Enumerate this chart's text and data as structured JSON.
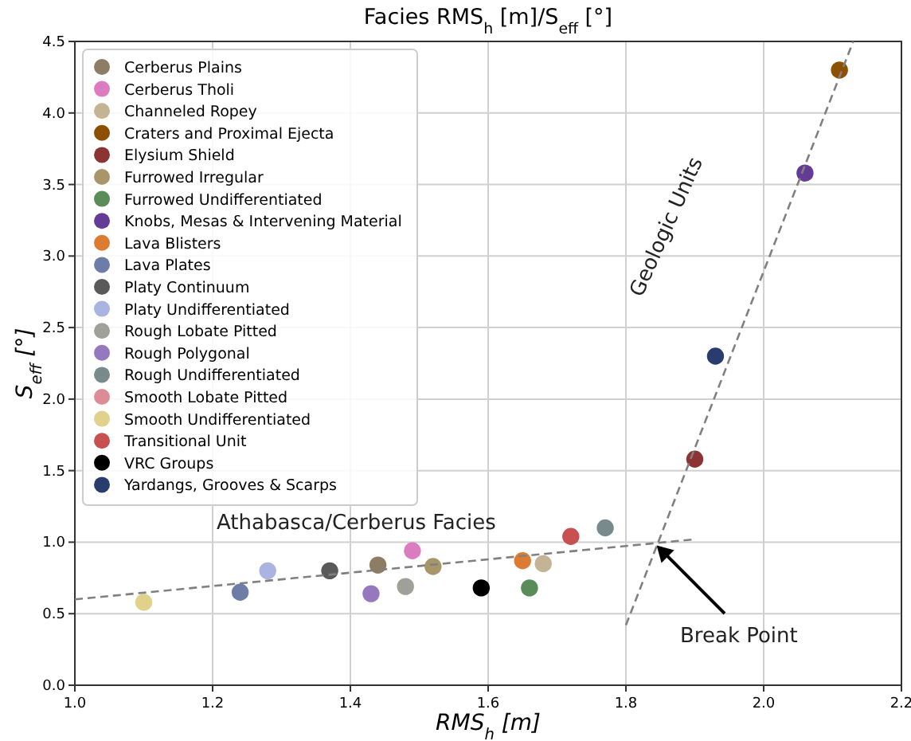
{
  "chart_data": {
    "type": "scatter",
    "title": "Facies RMS$_{h}$ [m]/S$_{eff}$ [°]",
    "xlabel": "RMS$_{h}$ [m]",
    "ylabel": "S$_{eff}$ [°]",
    "xlim": [
      1.0,
      2.2
    ],
    "ylim": [
      0,
      4.5
    ],
    "xticks": [
      {
        "value": 1.0,
        "label": "1.0"
      },
      {
        "value": 1.2,
        "label": "1.2"
      },
      {
        "value": 1.4,
        "label": "1.4"
      },
      {
        "value": 1.6,
        "label": "1.6"
      },
      {
        "value": 1.8,
        "label": "1.8"
      },
      {
        "value": 2.0,
        "label": "2.0"
      },
      {
        "value": 2.2,
        "label": "2.2"
      }
    ],
    "yticks": [
      {
        "value": 0,
        "label": "0.0"
      },
      {
        "value": 0.5,
        "label": "0.5"
      },
      {
        "value": 1.0,
        "label": "1.0"
      },
      {
        "value": 1.5,
        "label": "1.5"
      },
      {
        "value": 2.0,
        "label": "2.0"
      },
      {
        "value": 2.5,
        "label": "2.5"
      },
      {
        "value": 3.0,
        "label": "3.0"
      },
      {
        "value": 3.5,
        "label": "3.5"
      },
      {
        "value": 4.0,
        "label": "4.0"
      },
      {
        "value": 4.5,
        "label": "4.5"
      }
    ],
    "grid": true,
    "legend": "top left",
    "marker": "circle",
    "line_style": "dashed",
    "series": [
      {
        "name": "Cerberus Plains",
        "color": "#8c7d64",
        "x": [
          1.44
        ],
        "values": [
          0.84
        ]
      },
      {
        "name": "Cerberus Tholi",
        "color": "#dc7cc0",
        "x": [
          1.49
        ],
        "values": [
          0.94
        ]
      },
      {
        "name": "Channeled Ropey",
        "color": "#c4b496",
        "x": [
          1.68
        ],
        "values": [
          0.85
        ]
      },
      {
        "name": "Craters and Proximal Ejecta",
        "color": "#8c5000",
        "x": [
          2.11
        ],
        "values": [
          4.3
        ]
      },
      {
        "name": "Elysium Shield",
        "color": "#8c3434",
        "x": [
          1.9
        ],
        "values": [
          1.58
        ]
      },
      {
        "name": "Furrowed Irregular",
        "color": "#a8966a",
        "x": [
          1.52
        ],
        "values": [
          0.83
        ]
      },
      {
        "name": "Furrowed Undifferentiated",
        "color": "#5a8c5a",
        "x": [
          1.66
        ],
        "values": [
          0.68
        ]
      },
      {
        "name": "Knobs, Mesas & Intervening Material",
        "color": "#643c96",
        "x": [
          2.06
        ],
        "values": [
          3.58
        ]
      },
      {
        "name": "Lava Blisters",
        "color": "#dc7c32",
        "x": [
          1.65
        ],
        "values": [
          0.87
        ]
      },
      {
        "name": "Lava Plates",
        "color": "#6e7ca8",
        "x": [
          1.24
        ],
        "values": [
          0.65
        ]
      },
      {
        "name": "Platy Continuum",
        "color": "#5a5a5a",
        "x": [
          1.37
        ],
        "values": [
          0.8
        ]
      },
      {
        "name": "Platy Undifferentiated",
        "color": "#aab4e0",
        "x": [
          1.28
        ],
        "values": [
          0.8
        ]
      },
      {
        "name": "Rough Lobate Pitted",
        "color": "#a0a09a",
        "x": [
          1.48
        ],
        "values": [
          0.69
        ]
      },
      {
        "name": "Rough Polygonal",
        "color": "#9678be",
        "x": [
          1.43
        ],
        "values": [
          0.64
        ]
      },
      {
        "name": "Rough Undifferentiated",
        "color": "#788a8c",
        "x": [
          1.77
        ],
        "values": [
          1.1
        ]
      },
      {
        "name": "Smooth Lobate Pitted",
        "color": "#dc8c96",
        "x": [
          null
        ],
        "values": [
          null
        ]
      },
      {
        "name": "Smooth Undifferentiated",
        "color": "#e0d28c",
        "x": [
          1.1
        ],
        "values": [
          0.58
        ]
      },
      {
        "name": "Transitional Unit",
        "color": "#c85050",
        "x": [
          1.72
        ],
        "values": [
          1.04
        ]
      },
      {
        "name": "VRC Groups",
        "color": "#000000",
        "x": [
          1.59
        ],
        "values": [
          0.68
        ]
      },
      {
        "name": "Yardangs, Grooves & Scarps",
        "color": "#283c6e",
        "x": [
          1.93
        ],
        "values": [
          2.3
        ]
      },
      {
        "type": "line",
        "marker": "none",
        "color": "#808080",
        "x": [
          1.0,
          1.9
        ],
        "values": [
          0.6,
          1.02
        ]
      },
      {
        "type": "line",
        "marker": "none",
        "color": "#808080",
        "x": [
          1.8,
          2.13
        ],
        "values": [
          0.42,
          4.5
        ]
      }
    ],
    "annotations": [
      "Athabasca/Cerberus Facies",
      "Geologic Units",
      {
        "text": "Break Point",
        "x": 1.84,
        "y": 1.0
      }
    ]
  }
}
